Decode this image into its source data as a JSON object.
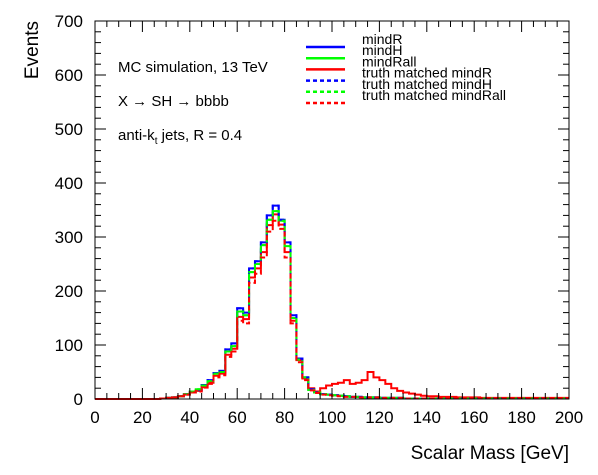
{
  "chart_data": {
    "type": "histogram",
    "xlabel": "Scalar Mass [GeV]",
    "ylabel": "Events",
    "xlim": [
      0,
      200
    ],
    "ylim": [
      0,
      700
    ],
    "bin_width": 2.5,
    "xticks": [
      "0",
      "20",
      "40",
      "60",
      "80",
      "100",
      "120",
      "140",
      "160",
      "180",
      "200"
    ],
    "yticks": [
      "0",
      "100",
      "200",
      "300",
      "400",
      "500",
      "600",
      "700"
    ],
    "annotations": [
      "MC simulation, 13 TeV",
      "X → SH → bbbb",
      "anti-k_t jets, R = 0.4"
    ],
    "grid": false,
    "legend_position": "top-right",
    "series": [
      {
        "name": "mindR",
        "color": "#0000ff",
        "style": "solid",
        "values": [
          0,
          0,
          0,
          0,
          0,
          0,
          0,
          0,
          0,
          0,
          0,
          1,
          2,
          3,
          5,
          9,
          14,
          16,
          26,
          35,
          48,
          52,
          92,
          103,
          168,
          160,
          242,
          255,
          290,
          340,
          358,
          332,
          290,
          155,
          75,
          40,
          18,
          12,
          9,
          8,
          7,
          6,
          5,
          4,
          4,
          3,
          3,
          3,
          2,
          2,
          2,
          2,
          1,
          1,
          1,
          1,
          1,
          1,
          1,
          1,
          1,
          1,
          1,
          1,
          1,
          1,
          1,
          1,
          1,
          1,
          1,
          1,
          1,
          1,
          1,
          1,
          1,
          1,
          1,
          1
        ]
      },
      {
        "name": "mindH",
        "color": "#00ff00",
        "style": "solid",
        "values": [
          0,
          0,
          0,
          0,
          0,
          0,
          0,
          0,
          0,
          0,
          0,
          1,
          2,
          3,
          5,
          9,
          14,
          18,
          25,
          33,
          47,
          50,
          88,
          98,
          162,
          155,
          235,
          250,
          285,
          332,
          348,
          330,
          283,
          150,
          73,
          40,
          17,
          12,
          9,
          8,
          7,
          6,
          5,
          4,
          4,
          3,
          3,
          3,
          2,
          2,
          2,
          2,
          1,
          1,
          1,
          1,
          1,
          1,
          1,
          1,
          1,
          1,
          1,
          1,
          1,
          1,
          1,
          1,
          1,
          1,
          1,
          1,
          1,
          1,
          1,
          1,
          1,
          1,
          1,
          1
        ]
      },
      {
        "name": "mindRall",
        "color": "#ff0000",
        "style": "solid",
        "values": [
          0,
          0,
          0,
          0,
          0,
          0,
          0,
          0,
          0,
          0,
          0,
          1,
          2,
          3,
          5,
          8,
          12,
          15,
          22,
          30,
          43,
          47,
          82,
          93,
          152,
          148,
          225,
          242,
          272,
          322,
          342,
          323,
          272,
          145,
          72,
          38,
          20,
          14,
          20,
          25,
          28,
          30,
          35,
          28,
          30,
          35,
          50,
          40,
          35,
          28,
          20,
          15,
          12,
          10,
          8,
          6,
          5,
          5,
          4,
          4,
          4,
          3,
          3,
          3,
          3,
          2,
          2,
          2,
          2,
          2,
          2,
          2,
          2,
          2,
          2,
          2,
          2,
          2,
          2,
          2
        ]
      },
      {
        "name": "truth matched mindR",
        "color": "#0000ff",
        "style": "dashed",
        "values": [
          0,
          0,
          0,
          0,
          0,
          0,
          0,
          0,
          0,
          0,
          0,
          1,
          2,
          3,
          5,
          9,
          14,
          16,
          26,
          35,
          48,
          52,
          92,
          103,
          168,
          160,
          242,
          255,
          290,
          340,
          358,
          332,
          290,
          155,
          75,
          40,
          18,
          12,
          9,
          8,
          7,
          6,
          5,
          4,
          4,
          3,
          3,
          3,
          2,
          2,
          2,
          2,
          1,
          1,
          1,
          1,
          1,
          1,
          1,
          1,
          1,
          1,
          1,
          1,
          1,
          1,
          1,
          1,
          1,
          1,
          1,
          1,
          1,
          1,
          1,
          1,
          1,
          1,
          1,
          1
        ]
      },
      {
        "name": "truth matched mindH",
        "color": "#00ff00",
        "style": "dashed",
        "values": [
          0,
          0,
          0,
          0,
          0,
          0,
          0,
          0,
          0,
          0,
          0,
          1,
          2,
          3,
          5,
          9,
          14,
          18,
          25,
          33,
          47,
          50,
          88,
          98,
          162,
          155,
          235,
          250,
          285,
          332,
          348,
          330,
          283,
          150,
          73,
          40,
          17,
          12,
          9,
          8,
          7,
          6,
          5,
          4,
          4,
          3,
          3,
          3,
          2,
          2,
          2,
          2,
          1,
          1,
          1,
          1,
          1,
          1,
          1,
          1,
          1,
          1,
          1,
          1,
          1,
          1,
          1,
          1,
          1,
          1,
          1,
          1,
          1,
          1,
          1,
          1,
          1,
          1,
          1,
          1
        ]
      },
      {
        "name": "truth matched mindRall",
        "color": "#ff0000",
        "style": "dashed",
        "values": [
          0,
          0,
          0,
          0,
          0,
          0,
          0,
          0,
          0,
          0,
          0,
          1,
          2,
          3,
          5,
          8,
          12,
          14,
          21,
          28,
          40,
          44,
          78,
          88,
          145,
          140,
          215,
          232,
          262,
          310,
          330,
          315,
          262,
          140,
          68,
          35,
          16,
          11,
          8,
          7,
          6,
          5,
          4,
          4,
          3,
          3,
          3,
          3,
          2,
          2,
          2,
          2,
          1,
          1,
          1,
          1,
          1,
          1,
          1,
          1,
          1,
          1,
          1,
          1,
          1,
          1,
          1,
          1,
          1,
          1,
          1,
          1,
          1,
          1,
          1,
          1,
          1,
          1,
          1,
          1
        ]
      }
    ]
  }
}
